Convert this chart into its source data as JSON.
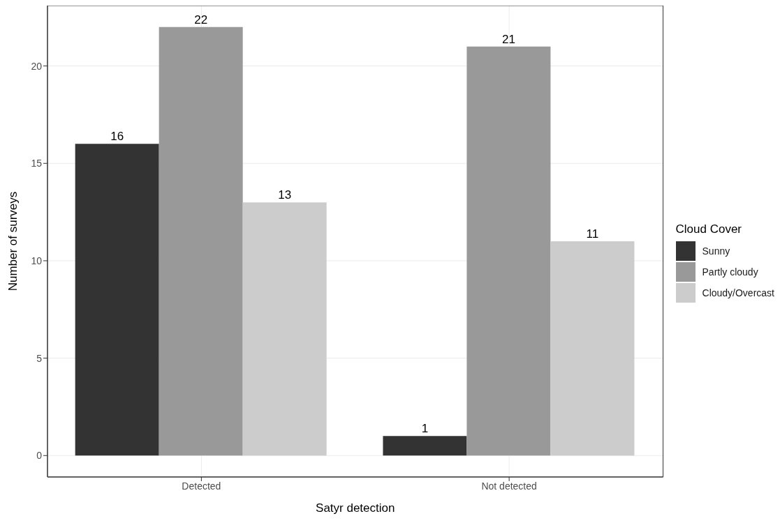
{
  "chart_data": {
    "type": "bar",
    "xlabel": "Satyr detection",
    "ylabel": "Number of surveys",
    "legend_title": "Cloud Cover",
    "categories": [
      "Detected",
      "Not detected"
    ],
    "series": [
      {
        "name": "Sunny",
        "color": "#333333",
        "values": [
          16,
          1
        ]
      },
      {
        "name": "Partly cloudy",
        "color": "#999999",
        "values": [
          22,
          21
        ]
      },
      {
        "name": "Cloudy/Overcast",
        "color": "#cccccc",
        "values": [
          13,
          11
        ]
      }
    ],
    "ylim": [
      -1.1,
      23.1
    ],
    "yticks": [
      0,
      5,
      10,
      15,
      20
    ],
    "grid": true,
    "legend": "right",
    "data_labels": true
  }
}
